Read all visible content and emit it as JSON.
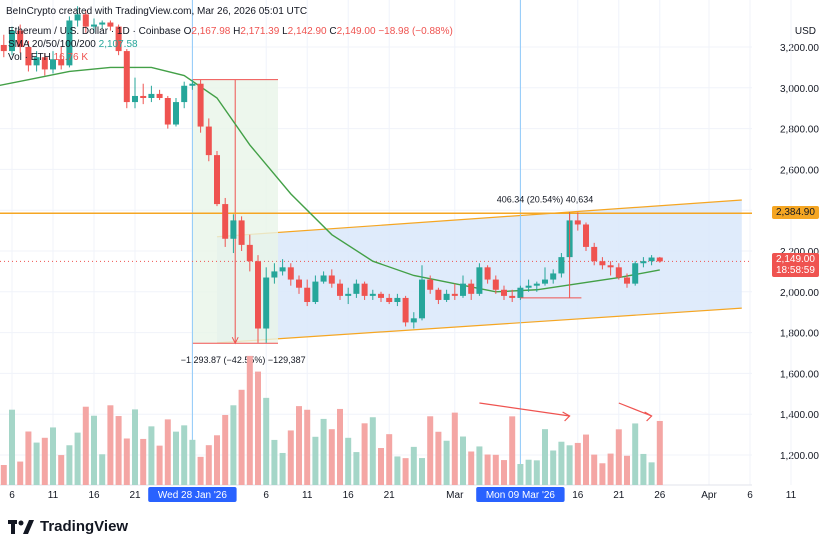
{
  "attribution": "BeInCrypto created with TradingView.com, Mar 26, 2026 05:01 UTC",
  "header": {
    "symbol": "Ethereum / U.S. Dollar · 1D · Coinbase",
    "ohlc": {
      "o_label": "O",
      "o": "2,167.98",
      "h_label": "H",
      "h": "2,171.39",
      "l_label": "L",
      "l": "2,142.90",
      "c_label": "C",
      "c": "2,149.00",
      "change": "−18.98 (−0.88%)"
    },
    "sma_label": "SMA 20/50/100/200",
    "sma_value": "2,107.58",
    "vol_label": "Vol · ETH",
    "vol_value": "16.76 K"
  },
  "currency": "USD",
  "brand": "TradingView",
  "colors": {
    "up": "#26a69a",
    "down": "#ef5350",
    "sma": "#43a047",
    "level": "#f5a623",
    "channel_fill": "#dce9fb",
    "channel_edge": "#f5a623",
    "highlight": "#2962ff"
  },
  "chart_data": {
    "type": "candlestick",
    "ylim": [
      1100,
      3350
    ],
    "y_ticks": [
      1200,
      1400,
      1600,
      1800,
      2000,
      2200,
      2400,
      2600,
      2800,
      3000,
      3200
    ],
    "y_tick_labels": [
      "1,200.00",
      "1,400.00",
      "1,600.00",
      "1,800.00",
      "2,000.00",
      "2,200.00",
      "2,400.00",
      "2,600.00",
      "2,800.00",
      "3,000.00",
      "3,200.00"
    ],
    "x_tick_labels": [
      "6",
      "11",
      "16",
      "21",
      "Wed 28 Jan '26",
      "6",
      "11",
      "16",
      "21",
      "Mar",
      "Mon 09 Mar '26",
      "16",
      "21",
      "26",
      "Apr",
      "6",
      "11"
    ],
    "x_tick_dates": [
      "2026-01-06",
      "2026-01-11",
      "2026-01-16",
      "2026-01-21",
      "2026-01-28",
      "2026-02-06",
      "2026-02-11",
      "2026-02-16",
      "2026-02-21",
      "2026-03-01",
      "2026-03-09",
      "2026-03-16",
      "2026-03-21",
      "2026-03-26",
      "2026-04-01",
      "2026-04-06",
      "2026-04-11"
    ],
    "highlighted_dates": [
      "Wed 28 Jan '26",
      "Mon 09 Mar '26"
    ],
    "resistance_level": {
      "value": 2384.9,
      "label": "2,384.90"
    },
    "last_price": {
      "value": 2149.0,
      "label": "2,149.00",
      "countdown": "18:58:59"
    },
    "channel": {
      "lower": [
        [
          "2026-01-31",
          1750
        ],
        [
          "2026-04-05",
          1920
        ]
      ],
      "upper": [
        [
          "2026-01-31",
          2270
        ],
        [
          "2026-04-05",
          2450
        ]
      ]
    },
    "measure_down": {
      "from_date": "2026-01-28",
      "to_date": "2026-02-05",
      "top": 3040,
      "bottom": 1748,
      "label": "−1,293.87 (−42.55%) −129,387"
    },
    "measure_up": {
      "date": "2026-03-09",
      "top": 2388,
      "bottom": 1970,
      "right_date": "2026-03-14",
      "label": "406.34 (20.54%) 40,634"
    },
    "sma": [
      [
        "2026-01-03",
        3000
      ],
      [
        "2026-01-08",
        3040
      ],
      [
        "2026-01-13",
        3080
      ],
      [
        "2026-01-18",
        3100
      ],
      [
        "2026-01-23",
        3100
      ],
      [
        "2026-01-27",
        3060
      ],
      [
        "2026-01-31",
        2950
      ],
      [
        "2026-02-04",
        2720
      ],
      [
        "2026-02-09",
        2480
      ],
      [
        "2026-02-14",
        2280
      ],
      [
        "2026-02-19",
        2150
      ],
      [
        "2026-02-24",
        2080
      ],
      [
        "2026-03-01",
        2040
      ],
      [
        "2026-03-06",
        2000
      ],
      [
        "2026-03-11",
        2010
      ],
      [
        "2026-03-16",
        2040
      ],
      [
        "2026-03-21",
        2070
      ],
      [
        "2026-03-26",
        2107
      ]
    ],
    "candles": [
      {
        "date": "2026-01-05",
        "open": 3210,
        "high": 3260,
        "low": 3150,
        "close": 3180
      },
      {
        "date": "2026-01-06",
        "open": 3180,
        "high": 3300,
        "low": 3160,
        "close": 3280
      },
      {
        "date": "2026-01-07",
        "open": 3280,
        "high": 3310,
        "low": 3170,
        "close": 3200
      },
      {
        "date": "2026-01-08",
        "open": 3200,
        "high": 3230,
        "low": 3080,
        "close": 3110
      },
      {
        "date": "2026-01-09",
        "open": 3110,
        "high": 3180,
        "low": 3080,
        "close": 3150
      },
      {
        "date": "2026-01-10",
        "open": 3150,
        "high": 3170,
        "low": 3060,
        "close": 3090
      },
      {
        "date": "2026-01-11",
        "open": 3090,
        "high": 3180,
        "low": 3070,
        "close": 3140
      },
      {
        "date": "2026-01-12",
        "open": 3140,
        "high": 3200,
        "low": 3090,
        "close": 3110
      },
      {
        "date": "2026-01-13",
        "open": 3110,
        "high": 3350,
        "low": 3100,
        "close": 3330
      },
      {
        "date": "2026-01-14",
        "open": 3330,
        "high": 3400,
        "low": 3300,
        "close": 3360
      },
      {
        "date": "2026-01-15",
        "open": 3360,
        "high": 3380,
        "low": 3270,
        "close": 3300
      },
      {
        "date": "2026-01-16",
        "open": 3300,
        "high": 3340,
        "low": 3270,
        "close": 3310
      },
      {
        "date": "2026-01-17",
        "open": 3310,
        "high": 3330,
        "low": 3290,
        "close": 3320
      },
      {
        "date": "2026-01-18",
        "open": 3320,
        "high": 3330,
        "low": 3280,
        "close": 3300
      },
      {
        "date": "2026-01-19",
        "open": 3300,
        "high": 3310,
        "low": 3160,
        "close": 3180
      },
      {
        "date": "2026-01-20",
        "open": 3180,
        "high": 3190,
        "low": 2900,
        "close": 2930
      },
      {
        "date": "2026-01-21",
        "open": 2930,
        "high": 3050,
        "low": 2900,
        "close": 2960
      },
      {
        "date": "2026-01-22",
        "open": 2960,
        "high": 3020,
        "low": 2920,
        "close": 2950
      },
      {
        "date": "2026-01-23",
        "open": 2950,
        "high": 3010,
        "low": 2930,
        "close": 2970
      },
      {
        "date": "2026-01-24",
        "open": 2970,
        "high": 2990,
        "low": 2940,
        "close": 2950
      },
      {
        "date": "2026-01-25",
        "open": 2950,
        "high": 2960,
        "low": 2800,
        "close": 2820
      },
      {
        "date": "2026-01-26",
        "open": 2820,
        "high": 2950,
        "low": 2810,
        "close": 2930
      },
      {
        "date": "2026-01-27",
        "open": 2930,
        "high": 3030,
        "low": 2900,
        "close": 3010
      },
      {
        "date": "2026-01-28",
        "open": 3010,
        "high": 3040,
        "low": 2990,
        "close": 3020
      },
      {
        "date": "2026-01-29",
        "open": 3020,
        "high": 3040,
        "low": 2780,
        "close": 2810
      },
      {
        "date": "2026-01-30",
        "open": 2810,
        "high": 2850,
        "low": 2640,
        "close": 2670
      },
      {
        "date": "2026-01-31",
        "open": 2670,
        "high": 2690,
        "low": 2420,
        "close": 2430
      },
      {
        "date": "2026-02-01",
        "open": 2430,
        "high": 2460,
        "low": 2220,
        "close": 2260
      },
      {
        "date": "2026-02-02",
        "open": 2260,
        "high": 2380,
        "low": 2190,
        "close": 2350
      },
      {
        "date": "2026-02-03",
        "open": 2350,
        "high": 2370,
        "low": 2200,
        "close": 2230
      },
      {
        "date": "2026-02-04",
        "open": 2230,
        "high": 2280,
        "low": 2100,
        "close": 2150
      },
      {
        "date": "2026-02-05",
        "open": 2150,
        "high": 2180,
        "low": 1750,
        "close": 1820
      },
      {
        "date": "2026-02-06",
        "open": 1820,
        "high": 2120,
        "low": 1750,
        "close": 2070
      },
      {
        "date": "2026-02-07",
        "open": 2070,
        "high": 2140,
        "low": 2040,
        "close": 2100
      },
      {
        "date": "2026-02-08",
        "open": 2100,
        "high": 2160,
        "low": 2080,
        "close": 2120
      },
      {
        "date": "2026-02-09",
        "open": 2120,
        "high": 2140,
        "low": 2030,
        "close": 2060
      },
      {
        "date": "2026-02-10",
        "open": 2060,
        "high": 2080,
        "low": 1990,
        "close": 2020
      },
      {
        "date": "2026-02-11",
        "open": 2020,
        "high": 2060,
        "low": 1930,
        "close": 1950
      },
      {
        "date": "2026-02-12",
        "open": 1950,
        "high": 2080,
        "low": 1940,
        "close": 2050
      },
      {
        "date": "2026-02-13",
        "open": 2050,
        "high": 2100,
        "low": 2040,
        "close": 2080
      },
      {
        "date": "2026-02-14",
        "open": 2080,
        "high": 2110,
        "low": 2020,
        "close": 2040
      },
      {
        "date": "2026-02-15",
        "open": 2040,
        "high": 2060,
        "low": 1960,
        "close": 1980
      },
      {
        "date": "2026-02-16",
        "open": 1980,
        "high": 2020,
        "low": 1940,
        "close": 1990
      },
      {
        "date": "2026-02-17",
        "open": 1990,
        "high": 2060,
        "low": 1970,
        "close": 2040
      },
      {
        "date": "2026-02-18",
        "open": 2040,
        "high": 2050,
        "low": 1960,
        "close": 1980
      },
      {
        "date": "2026-02-19",
        "open": 1980,
        "high": 2010,
        "low": 1960,
        "close": 1990
      },
      {
        "date": "2026-02-20",
        "open": 1990,
        "high": 2000,
        "low": 1950,
        "close": 1970
      },
      {
        "date": "2026-02-21",
        "open": 1970,
        "high": 1990,
        "low": 1940,
        "close": 1950
      },
      {
        "date": "2026-02-22",
        "open": 1950,
        "high": 1990,
        "low": 1930,
        "close": 1970
      },
      {
        "date": "2026-02-23",
        "open": 1970,
        "high": 1980,
        "low": 1830,
        "close": 1850
      },
      {
        "date": "2026-02-24",
        "open": 1850,
        "high": 1900,
        "low": 1820,
        "close": 1870
      },
      {
        "date": "2026-02-25",
        "open": 1870,
        "high": 2130,
        "low": 1860,
        "close": 2060
      },
      {
        "date": "2026-02-26",
        "open": 2060,
        "high": 2080,
        "low": 1990,
        "close": 2010
      },
      {
        "date": "2026-02-27",
        "open": 2010,
        "high": 2020,
        "low": 1940,
        "close": 1960
      },
      {
        "date": "2026-02-28",
        "open": 1960,
        "high": 2010,
        "low": 1950,
        "close": 1990
      },
      {
        "date": "2026-03-01",
        "open": 1990,
        "high": 2040,
        "low": 1960,
        "close": 1980
      },
      {
        "date": "2026-03-02",
        "open": 1980,
        "high": 2080,
        "low": 1970,
        "close": 2040
      },
      {
        "date": "2026-03-03",
        "open": 2040,
        "high": 2060,
        "low": 1960,
        "close": 1990
      },
      {
        "date": "2026-03-04",
        "open": 1990,
        "high": 2140,
        "low": 1980,
        "close": 2120
      },
      {
        "date": "2026-03-05",
        "open": 2120,
        "high": 2130,
        "low": 2040,
        "close": 2060
      },
      {
        "date": "2026-03-06",
        "open": 2060,
        "high": 2080,
        "low": 1990,
        "close": 2010
      },
      {
        "date": "2026-03-07",
        "open": 2010,
        "high": 2030,
        "low": 1960,
        "close": 1980
      },
      {
        "date": "2026-03-08",
        "open": 1980,
        "high": 2010,
        "low": 1950,
        "close": 1970
      },
      {
        "date": "2026-03-09",
        "open": 1970,
        "high": 2030,
        "low": 1960,
        "close": 2020
      },
      {
        "date": "2026-03-10",
        "open": 2020,
        "high": 2060,
        "low": 2000,
        "close": 2030
      },
      {
        "date": "2026-03-11",
        "open": 2030,
        "high": 2050,
        "low": 2000,
        "close": 2040
      },
      {
        "date": "2026-03-12",
        "open": 2040,
        "high": 2120,
        "low": 2030,
        "close": 2060
      },
      {
        "date": "2026-03-13",
        "open": 2060,
        "high": 2110,
        "low": 2040,
        "close": 2090
      },
      {
        "date": "2026-03-14",
        "open": 2090,
        "high": 2190,
        "low": 2070,
        "close": 2170
      },
      {
        "date": "2026-03-15",
        "open": 2170,
        "high": 2390,
        "low": 2160,
        "close": 2350
      },
      {
        "date": "2026-03-16",
        "open": 2350,
        "high": 2390,
        "low": 2300,
        "close": 2330
      },
      {
        "date": "2026-03-17",
        "open": 2330,
        "high": 2340,
        "low": 2200,
        "close": 2220
      },
      {
        "date": "2026-03-18",
        "open": 2220,
        "high": 2240,
        "low": 2130,
        "close": 2150
      },
      {
        "date": "2026-03-19",
        "open": 2150,
        "high": 2170,
        "low": 2110,
        "close": 2130
      },
      {
        "date": "2026-03-20",
        "open": 2130,
        "high": 2150,
        "low": 2080,
        "close": 2120
      },
      {
        "date": "2026-03-21",
        "open": 2120,
        "high": 2140,
        "low": 2060,
        "close": 2070
      },
      {
        "date": "2026-03-22",
        "open": 2070,
        "high": 2090,
        "low": 2020,
        "close": 2040
      },
      {
        "date": "2026-03-23",
        "open": 2040,
        "high": 2150,
        "low": 2030,
        "close": 2140
      },
      {
        "date": "2026-03-24",
        "open": 2140,
        "high": 2170,
        "low": 2120,
        "close": 2150
      },
      {
        "date": "2026-03-25",
        "open": 2150,
        "high": 2180,
        "low": 2130,
        "close": 2168
      },
      {
        "date": "2026-03-26",
        "open": 2168,
        "high": 2171,
        "low": 2143,
        "close": 2149
      }
    ],
    "volume_arrows": [
      [
        "2026-03-04",
        "2026-03-15"
      ],
      [
        "2026-03-21",
        "2026-03-25"
      ]
    ]
  }
}
